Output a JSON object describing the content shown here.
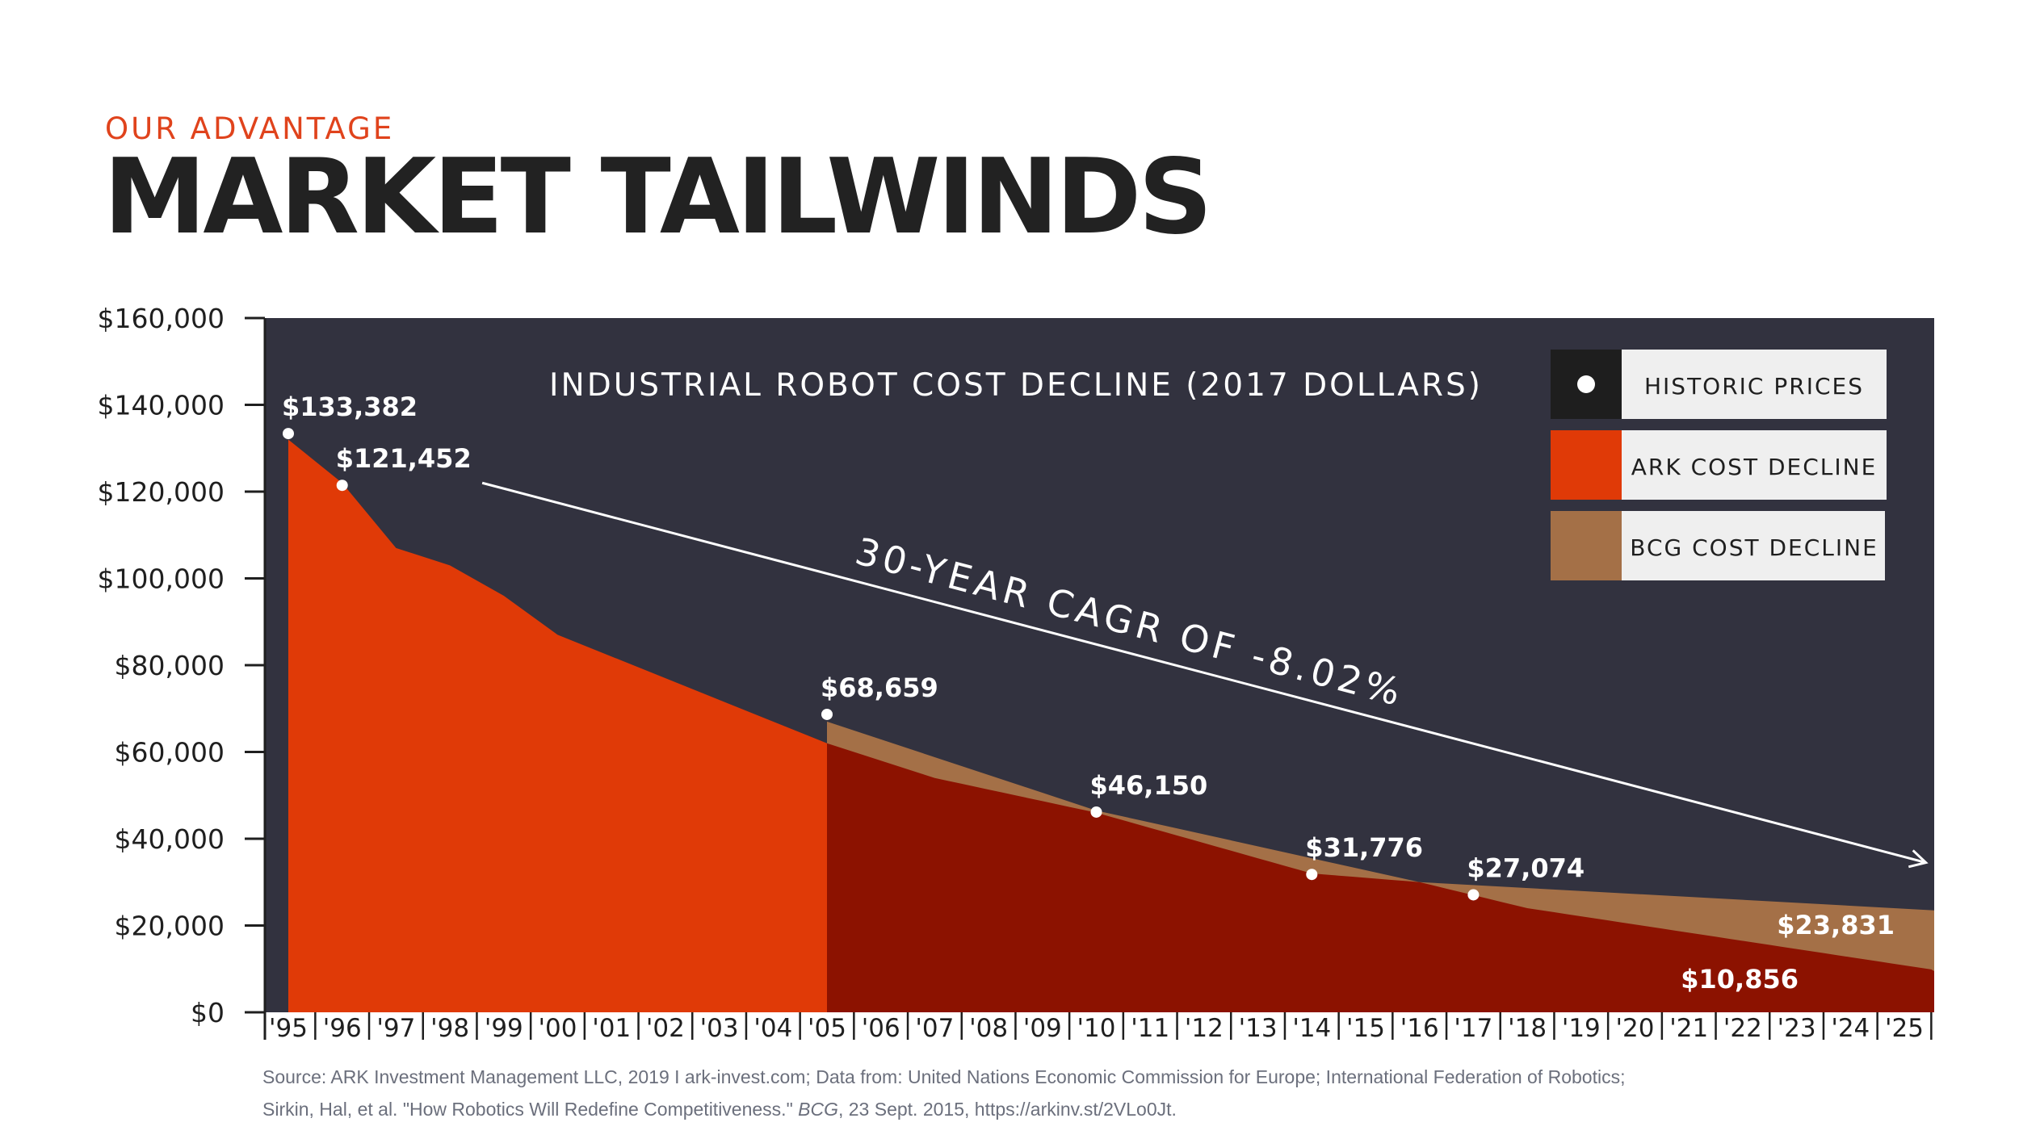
{
  "header": {
    "eyebrow": "OUR ADVANTAGE",
    "title": "MARKET TAILWINDS"
  },
  "chart_data": {
    "type": "area",
    "title": "INDUSTRIAL ROBOT COST DECLINE (2017 DOLLARS)",
    "ylim": [
      0,
      160000
    ],
    "y_ticks": [
      0,
      20000,
      40000,
      60000,
      80000,
      100000,
      120000,
      140000,
      160000
    ],
    "y_tick_labels": [
      "$0",
      "$20,000",
      "$40,000",
      "$60,000",
      "$80,000",
      "$100,000",
      "$120,000",
      "$140,000",
      "$160,000"
    ],
    "x_tick_labels": [
      "'95",
      "'96",
      "'97",
      "'98",
      "'99",
      "'00",
      "'01",
      "'02",
      "'03",
      "'04",
      "'05",
      "'06",
      "'07",
      "'08",
      "'09",
      "'10",
      "'11",
      "'12",
      "'13",
      "'14",
      "'15",
      "'16",
      "'17",
      "'18",
      "'19",
      "'20",
      "'21",
      "'22",
      "'23",
      "'24",
      "'25"
    ],
    "series": [
      {
        "name": "HISTORIC PRICES",
        "type": "scatter",
        "points": [
          {
            "x": 1995,
            "y": 133382,
            "label": "$133,382"
          },
          {
            "x": 1996,
            "y": 121452,
            "label": "$121,452"
          },
          {
            "x": 2005,
            "y": 68659,
            "label": "$68,659"
          },
          {
            "x": 2010,
            "y": 46150,
            "label": "$46,150"
          },
          {
            "x": 2014,
            "y": 31776,
            "label": "$31,776"
          },
          {
            "x": 2017,
            "y": 27074,
            "label": "$27,074"
          }
        ]
      },
      {
        "name": "ARK COST DECLINE",
        "type": "area",
        "points": [
          {
            "x": 1995,
            "y": 132000
          },
          {
            "x": 1996,
            "y": 122000
          },
          {
            "x": 1997,
            "y": 107000
          },
          {
            "x": 1998,
            "y": 103000
          },
          {
            "x": 1999,
            "y": 96000
          },
          {
            "x": 2000,
            "y": 87000
          },
          {
            "x": 2005,
            "y": 62000
          },
          {
            "x": 2006,
            "y": 58000
          },
          {
            "x": 2007,
            "y": 54000
          },
          {
            "x": 2010,
            "y": 46000
          },
          {
            "x": 2014,
            "y": 32000
          },
          {
            "x": 2016,
            "y": 30000
          },
          {
            "x": 2018,
            "y": 24000
          },
          {
            "x": 2025.7,
            "y": 9500
          }
        ],
        "end_label": "$10,856"
      },
      {
        "name": "BCG COST DECLINE",
        "type": "area",
        "points": [
          {
            "x": 2005,
            "y": 67000
          },
          {
            "x": 2010,
            "y": 46500
          },
          {
            "x": 2016,
            "y": 30000
          },
          {
            "x": 2025.7,
            "y": 23500
          }
        ],
        "end_label": "$23,831"
      }
    ],
    "annotation": {
      "text": "30-YEAR CAGR OF -8.02%",
      "arrow_from": {
        "x": 1998.6,
        "y": 122000
      },
      "arrow_to": {
        "x": 2025.4,
        "y": 34500
      }
    },
    "legend_position": "top-right",
    "colors": {
      "plot_background": "#32323f",
      "ark": "#e03a07",
      "overlap": "#8c1200",
      "bcg": "#a47047",
      "historic_marker": "#ffffff",
      "legend_swatch_historic": "#1e1e1e",
      "legend_box": "#efefef",
      "accent": "#e0431c"
    }
  },
  "source": {
    "text": "Source: ARK Investment Management LLC, 2019 I ark-invest.com; Data from: United Nations Economic Commission for Europe; International Federation of Robotics; Sirkin, Hal, et al. \"How Robotics Will Redefine Competitiveness.\" ",
    "italic": "BCG",
    "tail": ", 23 Sept. 2015, https://arkinv.st/2VLo0Jt."
  }
}
